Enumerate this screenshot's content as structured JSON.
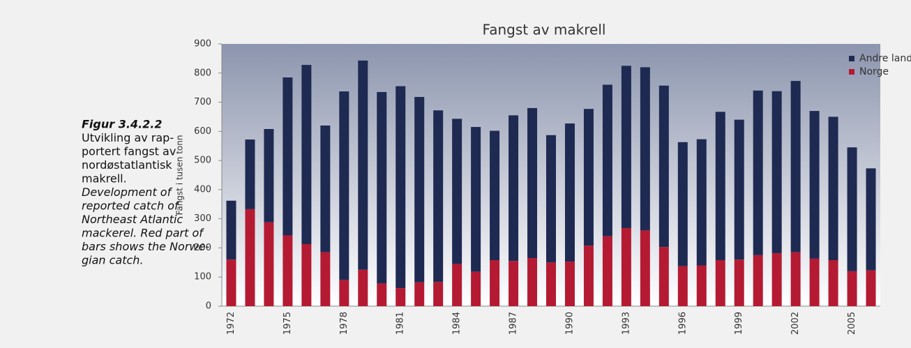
{
  "caption": {
    "label": "Figur 3.4.2.2",
    "norwegian": [
      "Utvikling av rap-",
      "portert fangst av",
      "nordøstatlantisk",
      "makrell."
    ],
    "english": [
      "Development of",
      "reported catch of",
      "Northeast Atlantic",
      "mackerel. Red part of",
      "bars shows the Norwe-",
      "gian catch."
    ]
  },
  "chart_data": {
    "type": "stacked_bar",
    "title": "Fangst av makrell",
    "y_label": "Fangst  i tusen tonn",
    "categories": [
      "1972",
      null,
      null,
      "1975",
      null,
      null,
      "1978",
      null,
      null,
      "1981",
      null,
      null,
      "1984",
      null,
      null,
      "1987",
      null,
      null,
      "1990",
      null,
      null,
      "1993",
      null,
      null,
      "1996",
      null,
      null,
      "1999",
      null,
      null,
      "2002",
      null,
      null,
      "2005",
      null
    ],
    "series": [
      {
        "name": "Andre land",
        "color": "#1f2a52",
        "values": [
          202,
          239,
          320,
          542,
          615,
          435,
          647,
          718,
          657,
          693,
          636,
          589,
          498,
          497,
          444,
          500,
          515,
          437,
          474,
          469,
          520,
          557,
          560,
          554,
          426,
          433,
          509,
          480,
          565,
          556,
          588,
          507,
          492,
          425,
          350
        ]
      },
      {
        "name": "Norge",
        "color": "#b51a33",
        "values": [
          160,
          333,
          288,
          243,
          213,
          185,
          90,
          125,
          78,
          62,
          82,
          83,
          145,
          118,
          158,
          155,
          165,
          150,
          153,
          208,
          240,
          268,
          260,
          203,
          137,
          140,
          158,
          160,
          175,
          182,
          185,
          163,
          158,
          120,
          123
        ]
      }
    ],
    "ylim": [
      0,
      900
    ],
    "yticks": [
      0,
      100,
      200,
      300,
      400,
      500,
      600,
      700,
      800,
      900
    ],
    "legend": "upper right"
  }
}
